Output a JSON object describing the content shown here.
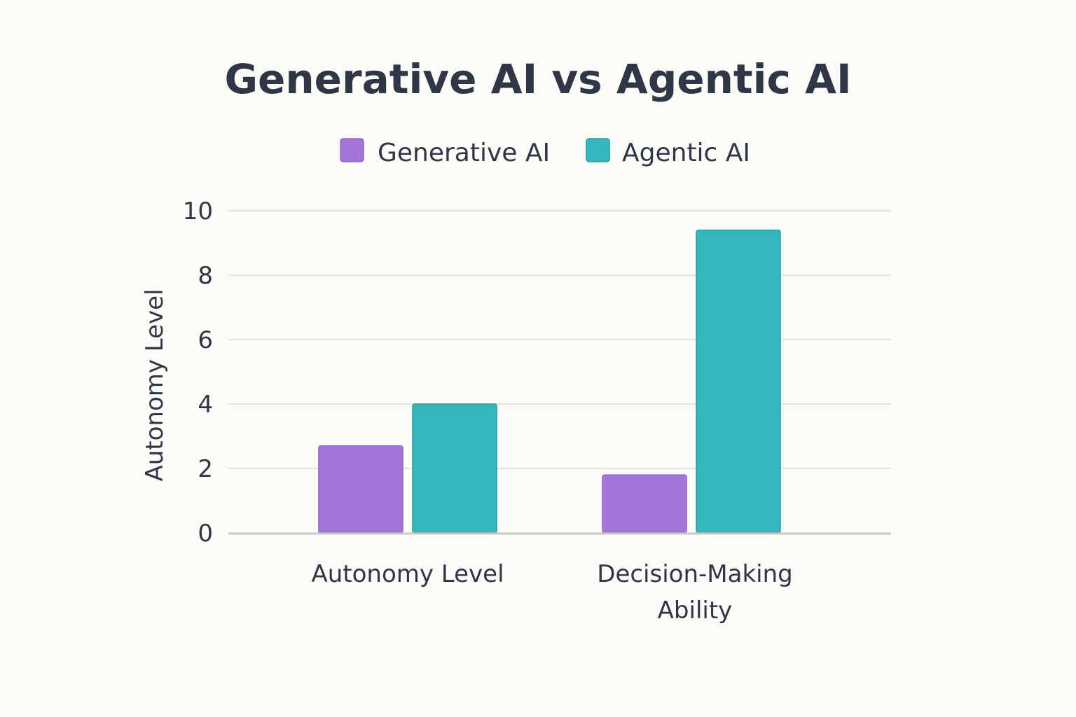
{
  "chart_data": {
    "type": "bar",
    "title": "Generative AI vs Agentic AI",
    "xlabel": "",
    "ylabel": "Autonomy Level",
    "ylim": [
      0,
      10
    ],
    "yticks": [
      0,
      2,
      4,
      6,
      8,
      10
    ],
    "grid": true,
    "legend_position": "top-center",
    "categories": [
      [
        "Autonomy Level"
      ],
      [
        "Decision-Making",
        "Ability"
      ]
    ],
    "series": [
      {
        "name": "Generative AI",
        "color": "#a576d9",
        "stroke": "#9462cb",
        "values": [
          2.7,
          1.8
        ]
      },
      {
        "name": "Agentic AI",
        "color": "#34b8bc",
        "stroke": "#239fa3",
        "values": [
          4.0,
          9.4
        ]
      }
    ]
  }
}
